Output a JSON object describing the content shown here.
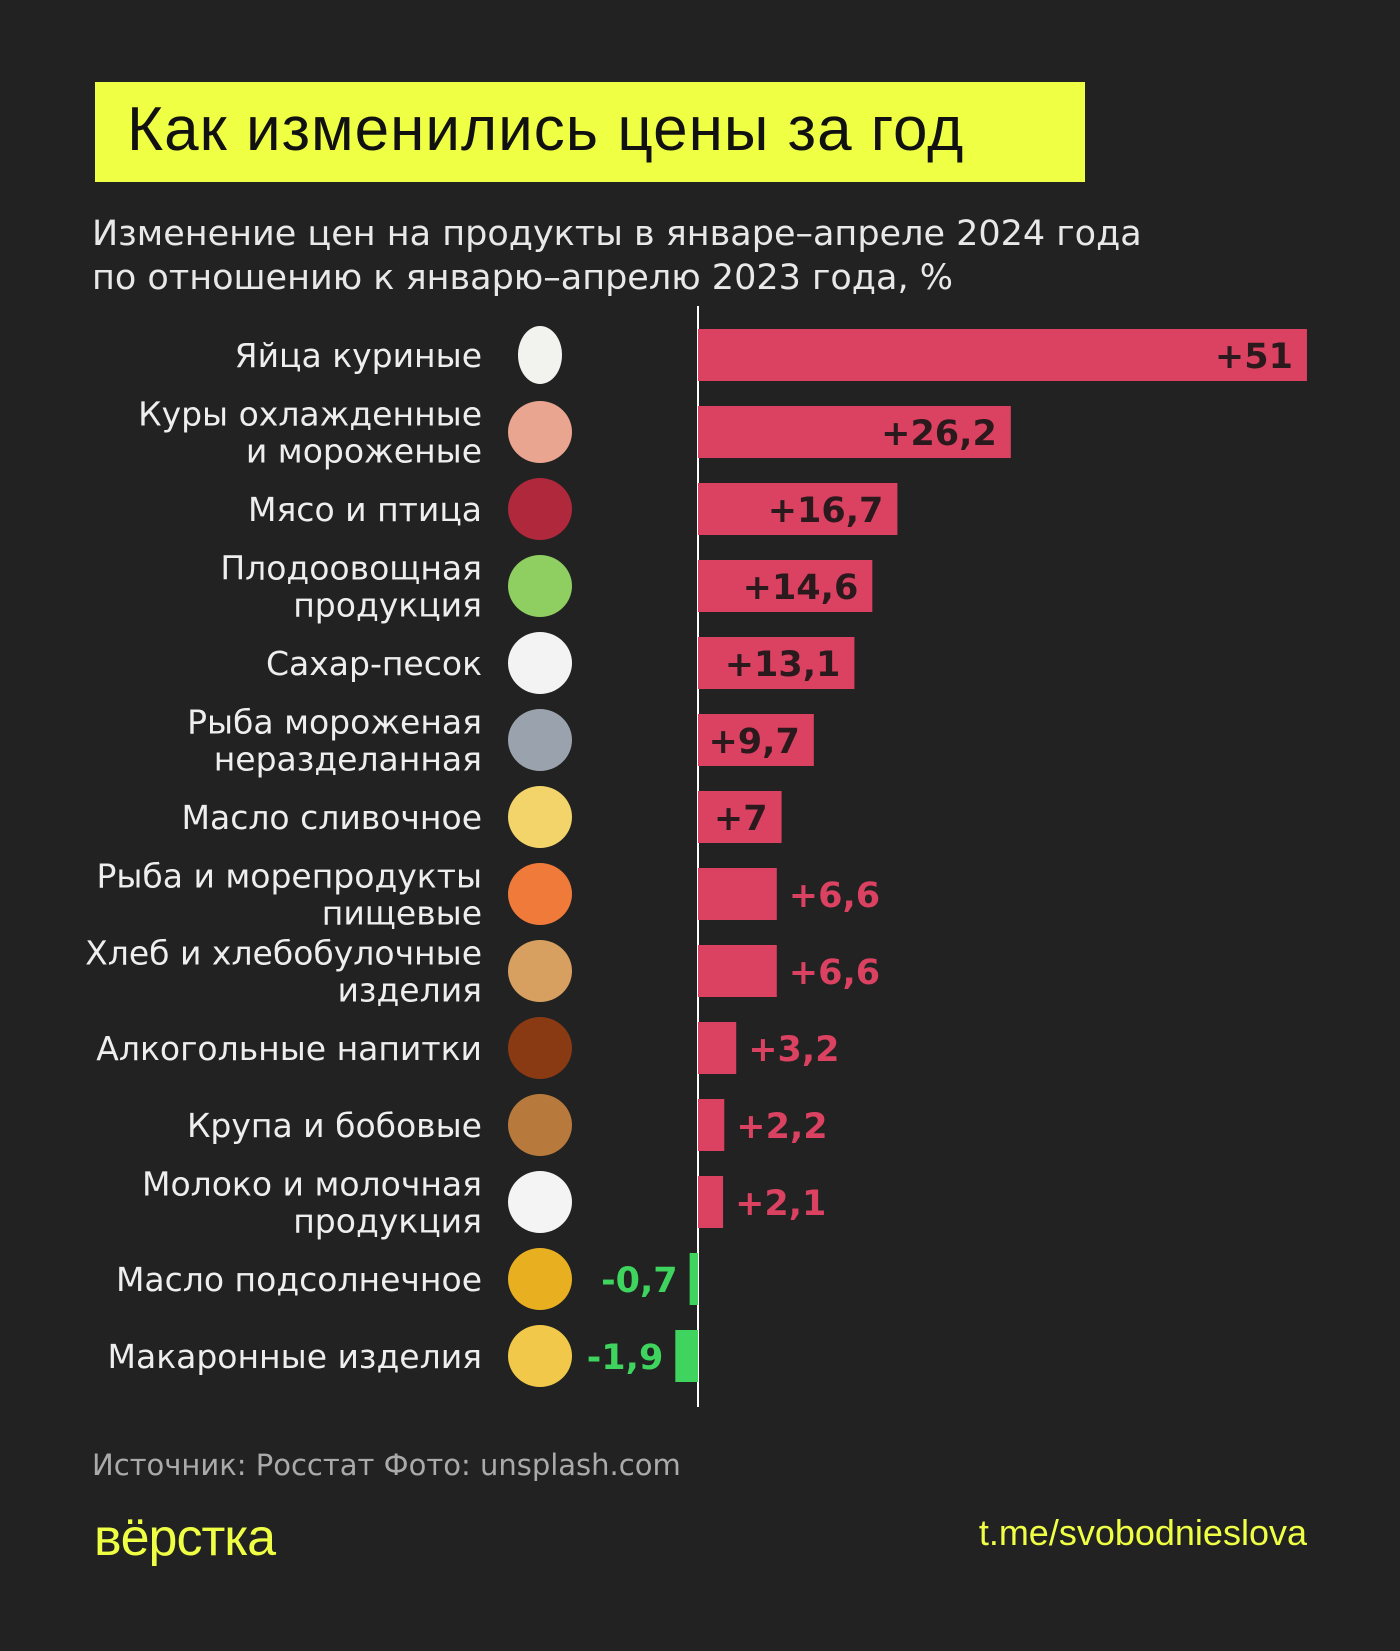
{
  "title": "Как изменились цены за год",
  "subtitle_lines": [
    "Изменение цен на продукты в январе–апреле 2024 года",
    "по отношению к январю–апрелю 2023 года, %"
  ],
  "footer": {
    "source": "Источник: Росстат  Фото: unsplash.com",
    "logo": "вёрстка",
    "url": "t.me/svobodnieslova"
  },
  "colors": {
    "background": "#222222",
    "accent": "#eeff44",
    "positive": "#db4160",
    "negative": "#3ed45e"
  },
  "chart_data": {
    "type": "bar",
    "orientation": "horizontal",
    "title": "Как изменились цены за год",
    "xlim": [
      -2,
      51
    ],
    "grid": false,
    "categories": [
      {
        "label": [
          "Яйца куриные"
        ],
        "icon": "egg-icon",
        "value": 51,
        "text": "+51"
      },
      {
        "label": [
          "Куры охлажденные",
          "и мороженые"
        ],
        "icon": "chicken-icon",
        "value": 26.2,
        "text": "+26,2"
      },
      {
        "label": [
          "Мясо и птица"
        ],
        "icon": "meat-icon",
        "value": 16.7,
        "text": "+16,7"
      },
      {
        "label": [
          "Плодоовощная",
          "продукция"
        ],
        "icon": "cabbage-icon",
        "value": 14.6,
        "text": "+14,6"
      },
      {
        "label": [
          "Сахар-песок"
        ],
        "icon": "sugar-icon",
        "value": 13.1,
        "text": "+13,1"
      },
      {
        "label": [
          "Рыба мороженая",
          "неразделанная"
        ],
        "icon": "fish-icon",
        "value": 9.7,
        "text": "+9,7"
      },
      {
        "label": [
          "Масло сливочное"
        ],
        "icon": "butter-icon",
        "value": 7,
        "text": "+7"
      },
      {
        "label": [
          "Рыба и морепродукты",
          "пищевые"
        ],
        "icon": "shrimp-icon",
        "value": 6.6,
        "text": "+6,6"
      },
      {
        "label": [
          "Хлеб и хлебобулочные",
          "изделия"
        ],
        "icon": "bun-icon",
        "value": 6.6,
        "text": "+6,6"
      },
      {
        "label": [
          "Алкогольные напитки"
        ],
        "icon": "beer-icon",
        "value": 3.2,
        "text": "+3,2"
      },
      {
        "label": [
          "Крупа и бобовые"
        ],
        "icon": "grain-icon",
        "value": 2.2,
        "text": "+2,2"
      },
      {
        "label": [
          "Молоко и молочная",
          "продукция"
        ],
        "icon": "milk-icon",
        "value": 2.1,
        "text": "+2,1"
      },
      {
        "label": [
          "Масло подсолнечное"
        ],
        "icon": "oil-icon",
        "value": -0.7,
        "text": "-0,7"
      },
      {
        "label": [
          "Макаронные изделия"
        ],
        "icon": "pasta-icon",
        "value": -1.9,
        "text": "-1,9"
      }
    ]
  }
}
